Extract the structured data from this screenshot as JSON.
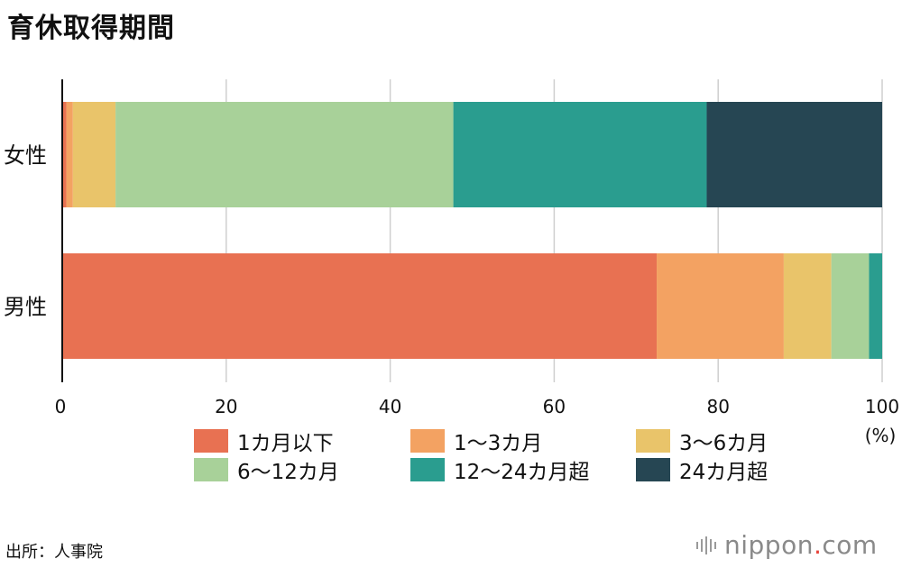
{
  "chart_data": {
    "type": "bar",
    "orientation": "horizontal",
    "stacked": true,
    "title": "育休取得期間",
    "categories": [
      "女性",
      "男性"
    ],
    "series": [
      {
        "name": "1カ月以下",
        "color": "#E87152",
        "values": [
          0.5,
          72.5
        ]
      },
      {
        "name": "1〜3カ月",
        "color": "#F3A262",
        "values": [
          0.8,
          15.5
        ]
      },
      {
        "name": "3〜6カ月",
        "color": "#E9C46A",
        "values": [
          5.2,
          5.8
        ]
      },
      {
        "name": "6〜12カ月",
        "color": "#A8D199",
        "values": [
          41.2,
          4.6
        ]
      },
      {
        "name": "12〜24カ月超",
        "color": "#2A9D8F",
        "values": [
          30.9,
          1.6
        ]
      },
      {
        "name": "24カ月超",
        "color": "#264653",
        "values": [
          21.4,
          0
        ]
      }
    ],
    "xlim": [
      0,
      100
    ],
    "xticks": [
      0,
      20,
      40,
      60,
      80,
      100
    ],
    "xunit": "(%)",
    "xlabel": "",
    "ylabel": "",
    "grid": true,
    "legend_position": "bottom"
  },
  "source": "出所：人事院",
  "brand": {
    "name": "nippon",
    "dot": ".",
    "suffix": "com"
  }
}
